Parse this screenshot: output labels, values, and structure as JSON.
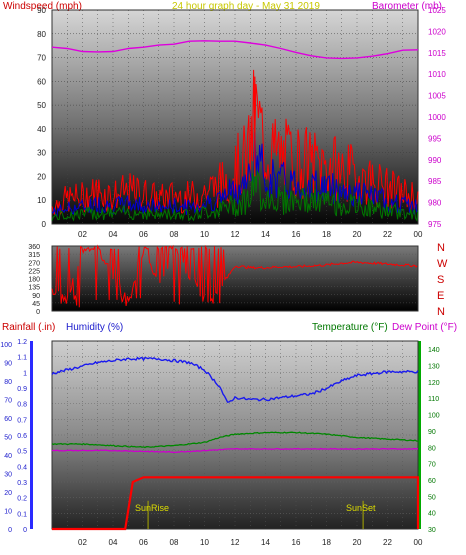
{
  "title": "24 hour graph day - May 31 2019",
  "panels": {
    "wind": {
      "left_label": "Windspeed (mph)",
      "right_label": "Barometer (mb)",
      "left_ticks": [
        "90",
        "80",
        "70",
        "60",
        "50",
        "40",
        "30",
        "20",
        "10",
        "0"
      ],
      "right_ticks": [
        "1025",
        "1020",
        "1015",
        "1010",
        "1005",
        "1000",
        "995",
        "990",
        "985",
        "980",
        "975"
      ]
    },
    "direction": {
      "left_ticks": [
        "360",
        "315",
        "270",
        "225",
        "180",
        "135",
        "90",
        "45",
        "0"
      ],
      "compass": [
        "N",
        "W",
        "S",
        "E",
        "N"
      ]
    },
    "lower": {
      "rain_label": "Rainfall (.in)",
      "humidity_label": "Humidity (%)",
      "temp_label": "Temperature (°F)",
      "dew_label": "Dew Point (°F)",
      "rain_ticks": [
        "1.2",
        "1.1",
        "1",
        "0.9",
        "0.8",
        "0.7",
        "0.6",
        "0.5",
        "0.4",
        "0.3",
        "0.2",
        "0.1",
        "0"
      ],
      "hum_ticks": [
        "100",
        "90",
        "80",
        "70",
        "60",
        "50",
        "40",
        "30",
        "20",
        "10",
        "0"
      ],
      "temp_ticks": [
        "140",
        "130",
        "120",
        "110",
        "100",
        "90",
        "80",
        "70",
        "60",
        "50",
        "40",
        "30"
      ],
      "sunrise": "SunRise",
      "sunset": "SunSet"
    }
  },
  "colors": {
    "wind": "#ff0000",
    "gust_blue": "#0000cc",
    "avg_green": "#007700",
    "barometer": "#dd00dd",
    "humidity": "#1a1aee",
    "temperature": "#008800",
    "dewpoint": "#cc00cc",
    "rain": "#ff0000",
    "sun": "#aaaa00"
  },
  "chart_data": [
    {
      "type": "line",
      "title": "24 hour graph day - May 31 2019",
      "x_ticks": [
        "02",
        "04",
        "06",
        "08",
        "10",
        "12",
        "14",
        "16",
        "18",
        "20",
        "22",
        "00"
      ],
      "xlim": [
        0,
        24
      ],
      "ylabel": "Windspeed (mph)",
      "ylim": [
        0,
        90
      ],
      "y2label": "Barometer (mb)",
      "y2lim": [
        975,
        1025
      ],
      "series": [
        {
          "name": "Windspeed (mph)",
          "axis": "left",
          "hours": [
            0,
            1,
            2,
            3,
            4,
            5,
            6,
            7,
            8,
            9,
            10,
            11,
            12,
            12.5,
            13,
            13.3,
            14,
            15,
            16,
            17,
            18,
            19,
            20,
            21,
            22,
            23,
            24
          ],
          "values": [
            10,
            14,
            15,
            18,
            16,
            18,
            17,
            14,
            16,
            15,
            18,
            22,
            30,
            35,
            40,
            62,
            42,
            38,
            36,
            34,
            33,
            30,
            27,
            24,
            20,
            17,
            15
          ]
        },
        {
          "name": "Barometer (mb)",
          "axis": "right",
          "hours": [
            0,
            1,
            2,
            3,
            4,
            5,
            6,
            7,
            8,
            9,
            10,
            11,
            12,
            13,
            14,
            15,
            16,
            17,
            18,
            19,
            20,
            21,
            22,
            23,
            24
          ],
          "values": [
            1016.3,
            1016,
            1015.3,
            1015.2,
            1015.3,
            1016,
            1016.3,
            1016.8,
            1017,
            1017.7,
            1017.8,
            1017.7,
            1017.7,
            1017.3,
            1016.8,
            1016,
            1015.1,
            1014.3,
            1013.8,
            1013.7,
            1013.8,
            1014.2,
            1014.8,
            1015.6,
            1015.7
          ]
        }
      ]
    },
    {
      "type": "scatter",
      "series_name": "Wind direction",
      "ylim": [
        0,
        360
      ],
      "hours": [
        0,
        1,
        2,
        3,
        4,
        5,
        6,
        7,
        8,
        9,
        10,
        11,
        12,
        13,
        14,
        15,
        16,
        17,
        18,
        19,
        20,
        21,
        22,
        23,
        24
      ],
      "values": [
        120,
        60,
        350,
        340,
        200,
        40,
        350,
        120,
        350,
        200,
        60,
        120,
        250,
        240,
        240,
        245,
        245,
        250,
        255,
        265,
        270,
        265,
        260,
        255,
        250
      ]
    },
    {
      "type": "line",
      "x_ticks": [
        "02",
        "04",
        "06",
        "08",
        "10",
        "12",
        "14",
        "16",
        "18",
        "20",
        "22",
        "00"
      ],
      "xlim": [
        0,
        24
      ],
      "series": [
        {
          "name": "Humidity (%)",
          "axis": "humidity",
          "ylim": [
            0,
            100
          ],
          "hours": [
            0,
            1,
            2,
            3,
            4,
            5,
            6,
            7,
            8,
            9,
            10,
            11,
            11.5,
            12,
            13,
            14,
            15,
            16,
            17,
            18,
            19,
            20,
            21,
            22,
            23,
            24
          ],
          "values": [
            84,
            86,
            88,
            90,
            91,
            92,
            92,
            92,
            91,
            90,
            86,
            77,
            68,
            71,
            70,
            70,
            71,
            72,
            73,
            76,
            80,
            83,
            84,
            85,
            85,
            85
          ]
        },
        {
          "name": "Temperature (°F)",
          "axis": "temperature",
          "ylim": [
            30,
            145
          ],
          "hours": [
            0,
            2,
            4,
            6,
            8,
            10,
            11,
            12,
            14,
            16,
            18,
            20,
            22,
            24
          ],
          "values": [
            82,
            82,
            81,
            80,
            81,
            83,
            86,
            88,
            89,
            89,
            88,
            86,
            85,
            84
          ]
        },
        {
          "name": "Dew Point (°F)",
          "axis": "temperature",
          "ylim": [
            30,
            145
          ],
          "hours": [
            0,
            4,
            8,
            12,
            16,
            20,
            24
          ],
          "values": [
            78,
            78,
            77,
            79,
            79,
            79,
            79
          ]
        },
        {
          "name": "Rainfall (.in)",
          "axis": "rain",
          "ylim": [
            0,
            1.2
          ],
          "hours": [
            0,
            3,
            4.8,
            5.3,
            6,
            12,
            24
          ],
          "values": [
            0,
            0,
            0,
            0.3,
            0.33,
            0.33,
            0.33
          ]
        }
      ],
      "annotations": [
        {
          "text": "SunRise",
          "hour": 6.3
        },
        {
          "text": "SunSet",
          "hour": 20.4
        }
      ]
    }
  ]
}
